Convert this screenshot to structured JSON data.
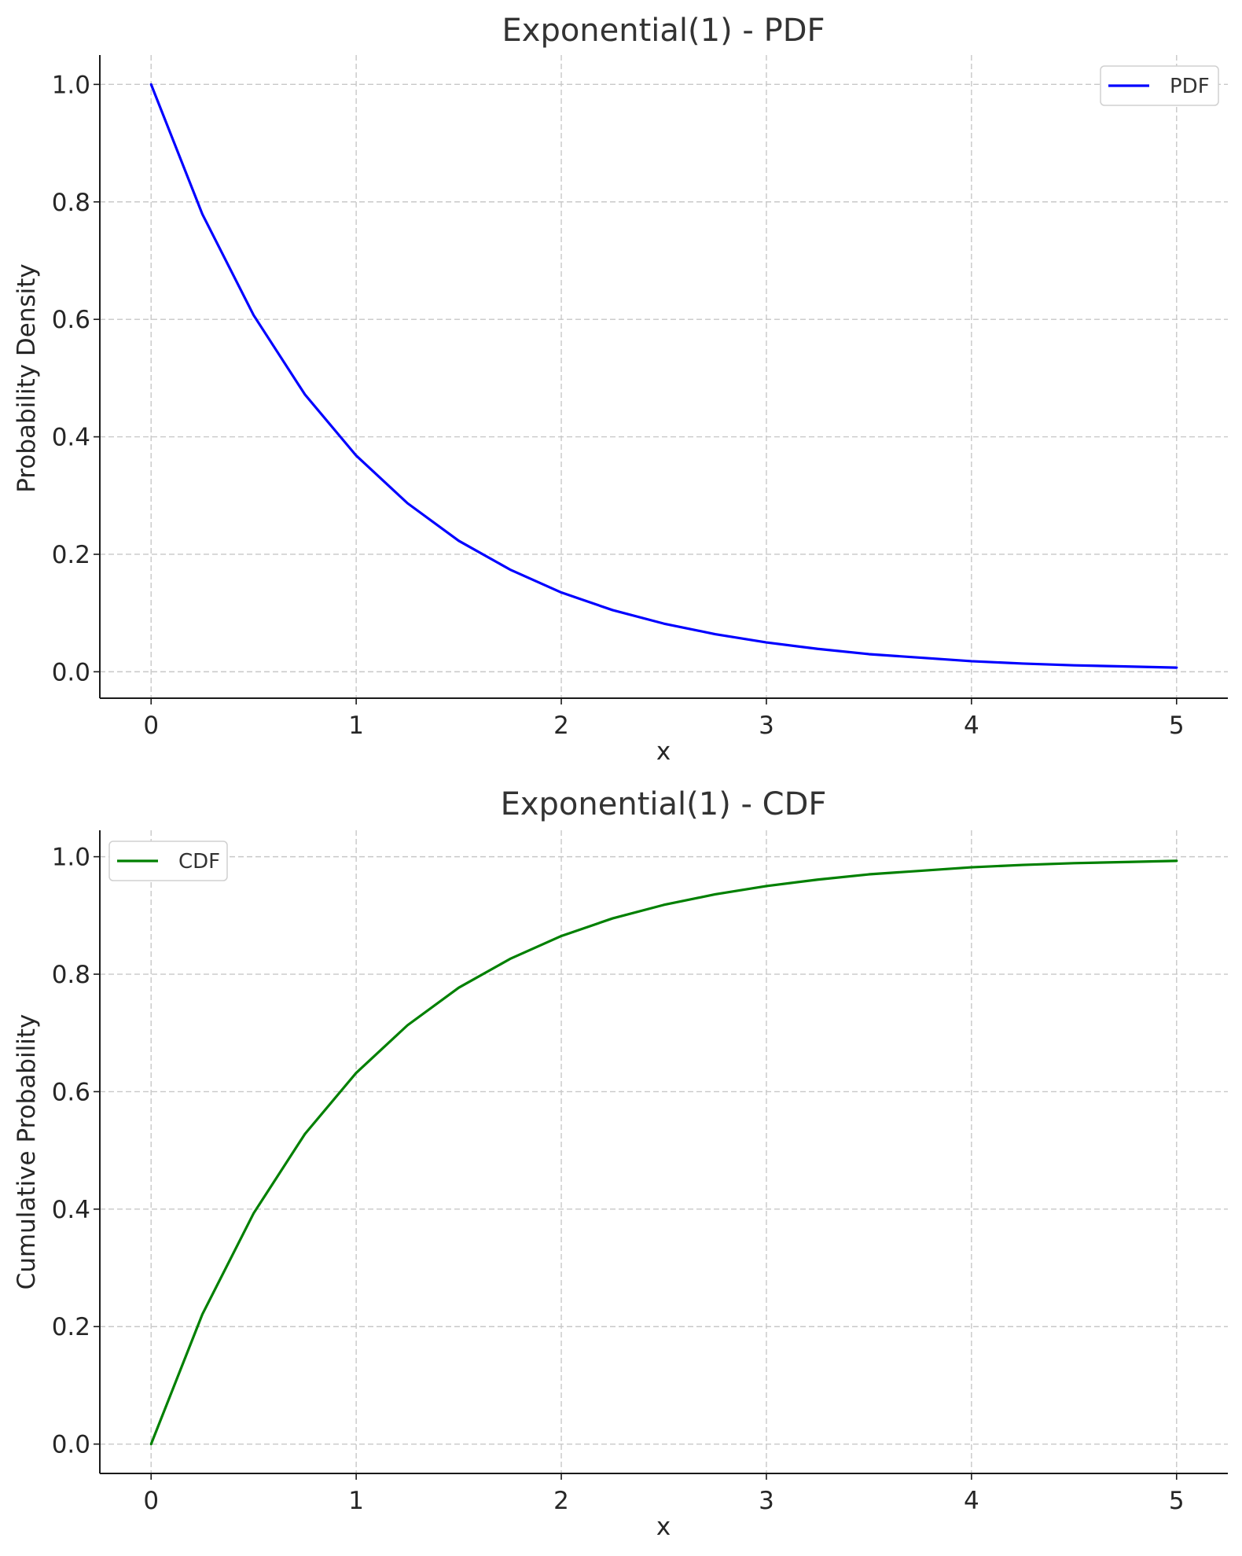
{
  "chart_data": [
    {
      "type": "line",
      "title": "Exponential(1) - PDF",
      "xlabel": "x",
      "ylabel": "Probability Density",
      "xlim": [
        -0.25,
        5.25
      ],
      "ylim": [
        -0.045,
        1.05
      ],
      "xticks": [
        "0",
        "1",
        "2",
        "3",
        "4",
        "5"
      ],
      "yticks": [
        "0.0",
        "0.2",
        "0.4",
        "0.6",
        "0.8",
        "1.0"
      ],
      "grid": true,
      "legend_position": "top-right",
      "series": [
        {
          "name": "PDF",
          "color": "#0000ff",
          "x": [
            0,
            0.25,
            0.5,
            0.75,
            1,
            1.25,
            1.5,
            1.75,
            2,
            2.25,
            2.5,
            2.75,
            3,
            3.25,
            3.5,
            3.75,
            4,
            4.25,
            4.5,
            4.75,
            5
          ],
          "y": [
            1.0,
            0.779,
            0.607,
            0.472,
            0.368,
            0.287,
            0.223,
            0.174,
            0.135,
            0.105,
            0.082,
            0.064,
            0.05,
            0.039,
            0.03,
            0.024,
            0.018,
            0.014,
            0.011,
            0.009,
            0.007
          ]
        }
      ]
    },
    {
      "type": "line",
      "title": "Exponential(1) - CDF",
      "xlabel": "x",
      "ylabel": "Cumulative Probability",
      "xlim": [
        -0.25,
        5.25
      ],
      "ylim": [
        -0.05,
        1.045
      ],
      "xticks": [
        "0",
        "1",
        "2",
        "3",
        "4",
        "5"
      ],
      "yticks": [
        "0.0",
        "0.2",
        "0.4",
        "0.6",
        "0.8",
        "1.0"
      ],
      "grid": true,
      "legend_position": "top-left",
      "series": [
        {
          "name": "CDF",
          "color": "#008000",
          "x": [
            0,
            0.25,
            0.5,
            0.75,
            1,
            1.25,
            1.5,
            1.75,
            2,
            2.25,
            2.5,
            2.75,
            3,
            3.25,
            3.5,
            3.75,
            4,
            4.25,
            4.5,
            4.75,
            5
          ],
          "y": [
            0.0,
            0.221,
            0.393,
            0.528,
            0.632,
            0.713,
            0.777,
            0.826,
            0.865,
            0.895,
            0.918,
            0.936,
            0.95,
            0.961,
            0.97,
            0.976,
            0.982,
            0.986,
            0.989,
            0.991,
            0.993
          ]
        }
      ]
    }
  ]
}
